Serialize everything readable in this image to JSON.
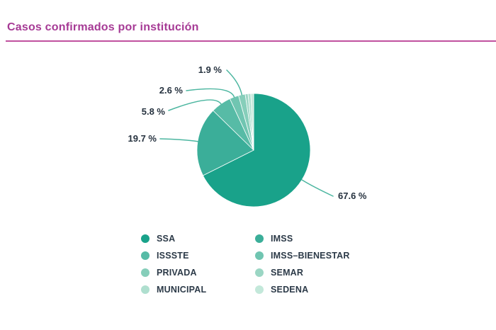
{
  "page": {
    "background": "#ffffff"
  },
  "header": {
    "title": "Casos confirmados por institución",
    "title_color": "#a63a95",
    "rule_color": "#c0519f"
  },
  "chart_data": {
    "type": "pie",
    "title": "Casos confirmados por institución",
    "start_angle_deg": 0,
    "direction": "clockwise",
    "label_color": "#26323f",
    "leader_color": "#4cb6a0",
    "slice_stroke": "#ffffff",
    "legend_position": "bottom",
    "legend_columns": 2,
    "slices": [
      {
        "label": "SSA",
        "value": 67.6,
        "percent_label": "67.6 %",
        "color": "#19a28a"
      },
      {
        "label": "IMSS",
        "value": 19.7,
        "percent_label": "19.7 %",
        "color": "#3bae99"
      },
      {
        "label": "ISSSTE",
        "value": 5.8,
        "percent_label": "5.8 %",
        "color": "#57bba6"
      },
      {
        "label": "IMSS–BIENESTAR",
        "value": 2.6,
        "percent_label": "2.6 %",
        "color": "#70c5b1"
      },
      {
        "label": "PRIVADA",
        "value": 1.9,
        "percent_label": "1.9 %",
        "color": "#86ceba"
      },
      {
        "label": "SEMAR",
        "value": 0.8,
        "percent_label": null,
        "color": "#9bd6c4"
      },
      {
        "label": "MUNICIPAL",
        "value": 0.8,
        "percent_label": null,
        "color": "#afdfcf"
      },
      {
        "label": "SEDENA",
        "value": 0.8,
        "percent_label": null,
        "color": "#c3e8da"
      }
    ]
  }
}
